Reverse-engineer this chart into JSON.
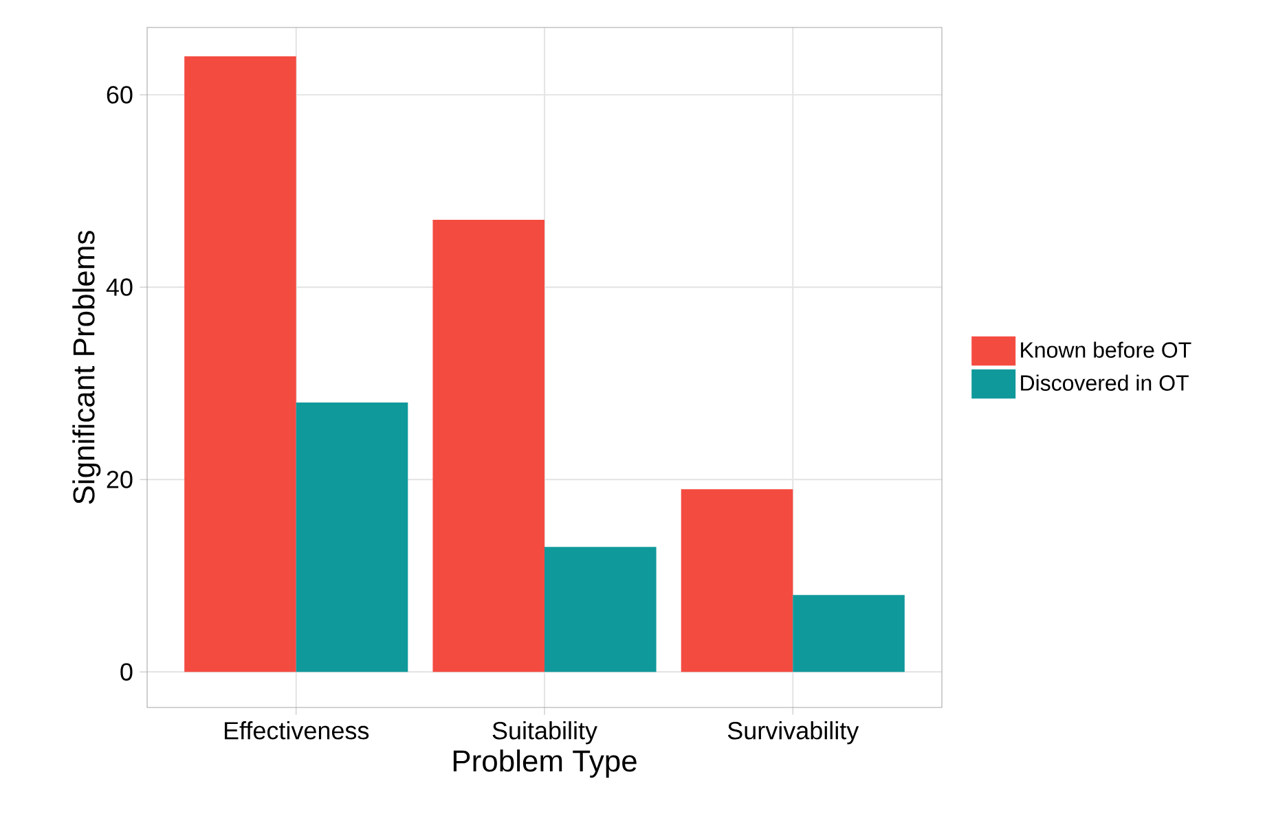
{
  "chart_data": {
    "type": "bar",
    "xlabel": "Problem Type",
    "ylabel": "Significant Problems",
    "categories": [
      "Effectiveness",
      "Suitability",
      "Survivability"
    ],
    "series": [
      {
        "name": "Known before OT",
        "color": "#f44b41",
        "values": [
          64,
          47,
          19
        ]
      },
      {
        "name": "Discovered in OT",
        "color": "#10999b",
        "values": [
          28,
          13,
          8
        ]
      }
    ],
    "ylim": [
      -3.7,
      67
    ],
    "yticks": [
      0,
      20,
      40,
      60
    ],
    "grid": true,
    "legend": "right"
  }
}
